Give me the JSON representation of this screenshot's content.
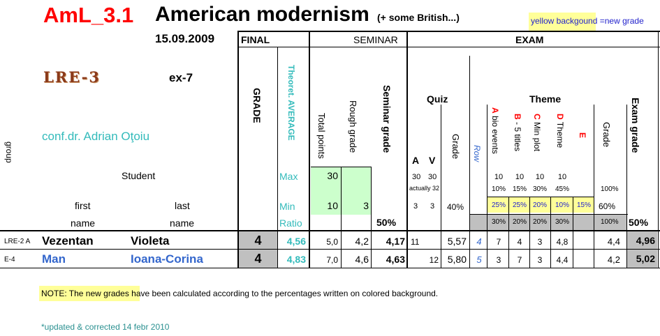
{
  "header": {
    "code": "AmL_3.1",
    "title": "American modernism",
    "subtitle": "(+ some British...)",
    "legend": "yellow backgound =new grade",
    "date": "15.09.2009",
    "group_code": "LRE-3",
    "exercise": "ex-7",
    "lecturer": "conf.dr. Adrian Oţoiu"
  },
  "sections": {
    "final": "FINAL",
    "seminar": "SEMINAR",
    "exam": "EXAM"
  },
  "cols": {
    "group": "group",
    "grade": "GRADE",
    "theoret_avg": "Theoret. AVERAGE",
    "total_points": "Total points",
    "rough_grade": "Rough grade",
    "seminar_grade": "Seminar grade",
    "quiz": "Quiz",
    "quiz_a": "A",
    "quiz_v": "V",
    "quiz_grade": "Grade",
    "row": "Row",
    "theme": "Theme",
    "a_letter": "A",
    "a_text": " bio events",
    "b_letter": "B",
    "b_text": " - 5 titles",
    "c_letter": "C",
    "c_text": " Min plot",
    "d_letter": "D",
    "d_text": " Theme",
    "e_letter": "E",
    "theme_grade": "Grade",
    "exam_grade": "Exam grade"
  },
  "labels": {
    "student": "Student",
    "max": "Max",
    "min": "Min",
    "ratio": "Ratio",
    "first": "first",
    "last": "last",
    "name1": "name",
    "name2": "name"
  },
  "maxrow": {
    "total": "30",
    "a": "30",
    "v": "30",
    "actually": "actually 32",
    "ta": "10",
    "tb": "10",
    "tc": "10",
    "td": "10"
  },
  "pctrow": {
    "a": "10%",
    "b": "15%",
    "c": "30%",
    "d": "45%",
    "grade": "100%"
  },
  "minrow": {
    "total": "10",
    "rough": "3",
    "a": "3",
    "v": "3",
    "quiz_pct": "40%",
    "a_pct": "25%",
    "b_pct": "25%",
    "c_pct": "20%",
    "d_pct": "10%",
    "e_pct": "15%",
    "grade_pct": "60%"
  },
  "ratiorow": {
    "seminar": "50%",
    "a": "30%",
    "b": "20%",
    "c": "20%",
    "d": "30%",
    "grade": "100%",
    "exam": "50%"
  },
  "students": [
    {
      "group": "LRE-2  A",
      "first": "Vezentan",
      "last": "Violeta",
      "grade": "4",
      "avg": "4,56",
      "total": "5,0",
      "rough": "4,2",
      "seminar": "4,17",
      "quiz_a": "11",
      "quiz_v": "",
      "quiz_grade": "5,57",
      "row": "4",
      "ta": "7",
      "tb": "4",
      "tc": "3",
      "td": "4,8",
      "te": "",
      "theme_grade": "4,4",
      "exam": "4,96"
    },
    {
      "group": "E-4",
      "first": "Man",
      "last": "Ioana-Corina",
      "grade": "4",
      "avg": "4,83",
      "total": "7,0",
      "rough": "4,6",
      "seminar": "4,63",
      "quiz_a": "",
      "quiz_v": "12",
      "quiz_grade": "5,80",
      "row": "5",
      "ta": "3",
      "tb": "7",
      "tc": "3",
      "td": "4,4",
      "te": "",
      "theme_grade": "4,2",
      "exam": "5,02"
    }
  ],
  "note": {
    "text": "NOTE: The new grades have been calculated according to the percentages written on colored background."
  },
  "footer": {
    "updated": "*updated & corrected 14 febr 2010"
  },
  "colors": {
    "red": "#ff0000",
    "teal": "#33bbbb",
    "green_fill": "#ccffcc",
    "yellow_fill": "#ffff99",
    "gray_fill": "#c0c0c0",
    "blue": "#3366cc",
    "brown": "#8b3a1a",
    "dark_teal": "#2a9090"
  }
}
